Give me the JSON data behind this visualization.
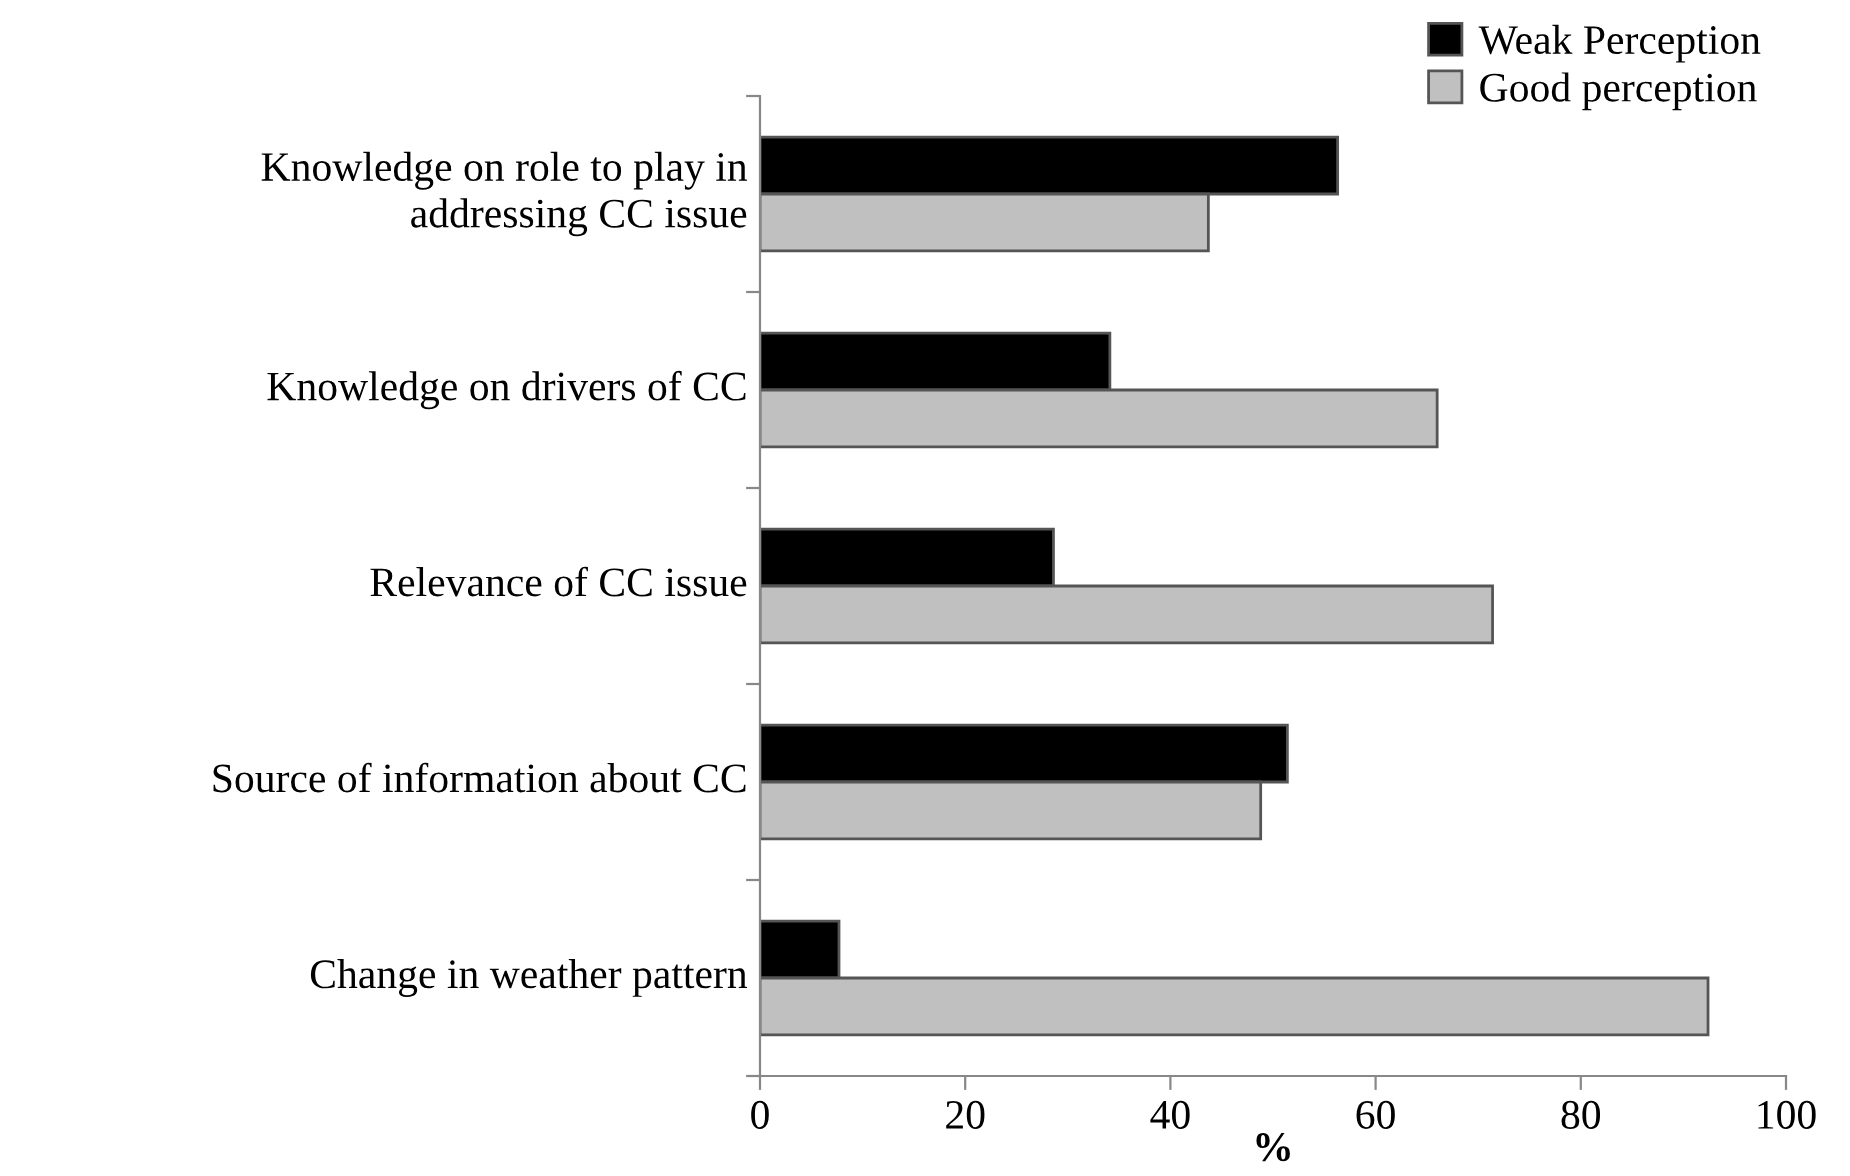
{
  "chart_data": {
    "type": "bar",
    "orientation": "horizontal",
    "xlabel": "%",
    "categories": [
      "Knowledge on role to play in\naddressing CC issue",
      "Knowledge on drivers of CC",
      "Relevance of CC issue",
      "Source of information about CC",
      "Change in weather pattern"
    ],
    "series": [
      {
        "name": "Weak Perception",
        "color": "#000000",
        "values": [
          56.3,
          34.1,
          28.6,
          51.4,
          7.7
        ]
      },
      {
        "name": "Good perception",
        "color": "#c0c0c0",
        "values": [
          43.7,
          66.0,
          71.4,
          48.8,
          92.4
        ]
      }
    ],
    "xlim": [
      0,
      100
    ],
    "xticks": [
      0,
      20,
      40,
      60,
      80,
      100
    ],
    "grid": false,
    "legend": "top right"
  }
}
